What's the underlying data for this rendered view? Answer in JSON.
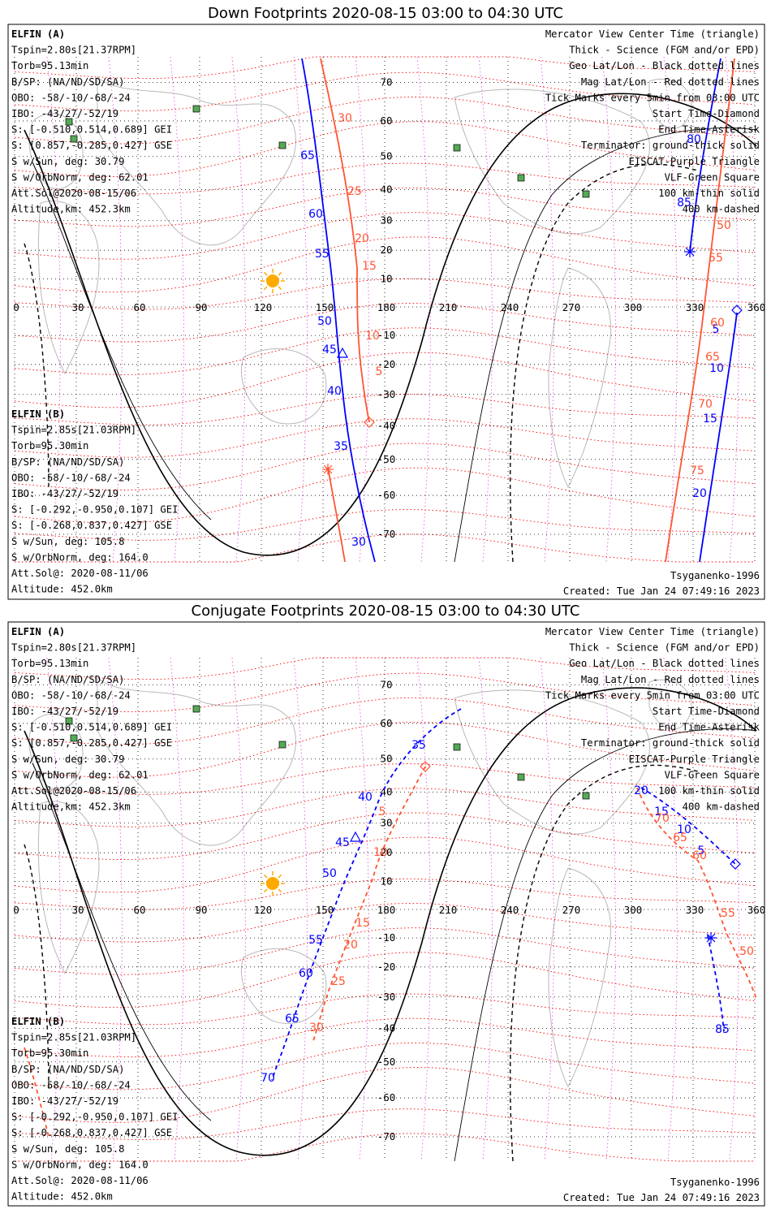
{
  "colors": {
    "probe_a": "#0000ff",
    "probe_b": "#ff5533",
    "geo_grid": "#000000",
    "mag_grid": "#ff0000",
    "lat_band": "#cc00cc",
    "vlf": "#339933",
    "sun": "#ffaa00",
    "coast": "#b8b8b8"
  },
  "panels": [
    {
      "title": "Down Footprints 2020-08-15 03:00 to 04:30 UTC",
      "elfin_a": [
        "ELFIN (A)",
        "Tspin=2.80s[21.37RPM]",
        "Torb=95.13min",
        "B/SP: (NA/ND/SD/SA)",
        "OBO: -58/-10/-68/-24",
        "IBO: -43/27/-52/19",
        "S: [-0.510,0.514,0.689] GEI",
        "S: [0.857,-0.285,0.427] GSE",
        "S w/Sun, deg: 30.79",
        "S w/OrbNorm, deg: 62.01",
        "Att.Sol@2020-08-15/06",
        "Altitude,km: 452.3km"
      ],
      "elfin_b": [
        "ELFIN (B)",
        "Tspin=2.85s[21.03RPM]",
        "Torb=95.30min",
        "B/SP: (NA/ND/SD/SA)",
        "OBO: -58/-10/-68/-24",
        "IBO: -43/27/-52/19",
        "S: [-0.292,-0.950,0.107] GEI",
        "S: [-0.268,0.837,0.427] GSE",
        "S w/Sun, deg: 105.8",
        "S w/OrbNorm, deg: 164.0",
        "Att.Sol@: 2020-08-11/06",
        "Altitude: 452.0km"
      ],
      "legend": [
        "Mercator View Center Time (triangle)",
        "Thick - Science (FGM and/or EPD)",
        "Geo Lat/Lon - Black dotted lines",
        "Mag Lat/Lon - Red dotted lines",
        "Tick Marks every 5min from 03:00 UTC",
        "Start Time-Diamond",
        "End Time-Asterisk",
        "Terminator: ground-thick solid",
        "EISCAT-Purple Triangle",
        "VLF-Green Square",
        "100 km-thin solid",
        "400 km-dashed"
      ],
      "model": "Tsyganenko-1996",
      "created": "Created: Tue Jan 24 07:49:16 2023",
      "lon_labels": [
        "0",
        "30",
        "60",
        "90",
        "120",
        "150",
        "180",
        "210",
        "240",
        "270",
        "300",
        "330",
        "360"
      ],
      "lat_labels": [
        "70",
        "60",
        "50",
        "40",
        "30",
        "20",
        "10",
        "-10",
        "-20",
        "-30",
        "-40",
        "-50",
        "-60",
        "-70"
      ],
      "ticks_a": [
        "30",
        "35",
        "40",
        "45",
        "50",
        "55",
        "60",
        "65",
        "5",
        "10",
        "15",
        "20",
        "80",
        "85"
      ],
      "ticks_b": [
        "30",
        "25",
        "20",
        "15",
        "10",
        "5",
        "50",
        "55",
        "60",
        "65",
        "70",
        "75"
      ]
    },
    {
      "title": "Conjugate Footprints 2020-08-15 03:00 to 04:30 UTC",
      "elfin_a": [
        "ELFIN (A)",
        "Tspin=2.80s[21.37RPM]",
        "Torb=95.13min",
        "B/SP: (NA/ND/SD/SA)",
        "OBO: -58/-10/-68/-24",
        "IBO: -43/27/-52/19",
        "S: [-0.510,0.514,0.689] GEI",
        "S: [0.857,-0.285,0.427] GSE",
        "S w/Sun, deg: 30.79",
        "S w/OrbNorm, deg: 62.01",
        "Att.Sol@2020-08-15/06",
        "Altitude,km: 452.3km"
      ],
      "elfin_b": [
        "ELFIN (B)",
        "Tspin=2.85s[21.03RPM]",
        "Torb=95.30min",
        "B/SP: (NA/ND/SD/SA)",
        "OBO: -58/-10/-68/-24",
        "IBO: -43/27/-52/19",
        "S: [-0.292,-0.950,0.107] GEI",
        "S: [-0.268,0.837,0.427] GSE",
        "S w/Sun, deg: 105.8",
        "S w/OrbNorm, deg: 164.0",
        "Att.Sol@: 2020-08-11/06",
        "Altitude: 452.0km"
      ],
      "legend": [
        "Mercator View Center Time (triangle)",
        "Thick - Science (FGM and/or EPD)",
        "Geo Lat/Lon - Black dotted lines",
        "Mag Lat/Lon - Red dotted lines",
        "Tick Marks every 5min from 03:00 UTC",
        "Start Time-Diamond",
        "End Time-Asterisk",
        "Terminator: ground-thick solid",
        "EISCAT-Purple Triangle",
        "VLF-Green Square",
        "100 km-thin solid",
        "400 km-dashed"
      ],
      "model": "Tsyganenko-1996",
      "created": "Created: Tue Jan 24 07:49:16 2023",
      "lon_labels": [
        "0",
        "30",
        "60",
        "90",
        "120",
        "150",
        "180",
        "210",
        "240",
        "270",
        "300",
        "330",
        "360"
      ],
      "lat_labels": [
        "70",
        "60",
        "50",
        "40",
        "30",
        "20",
        "10",
        "-10",
        "-20",
        "-30",
        "-40",
        "-50",
        "-60",
        "-70"
      ],
      "ticks_a": [
        "35",
        "40",
        "45",
        "50",
        "55",
        "60",
        "65",
        "70",
        "20",
        "15",
        "10",
        "5",
        "85"
      ],
      "ticks_b": [
        "5",
        "10",
        "15",
        "20",
        "25",
        "30",
        "70",
        "65",
        "60",
        "55",
        "50"
      ]
    }
  ],
  "chart_data": [
    {
      "type": "scatter",
      "title": "Down Footprints 2020-08-15 03:00 to 04:30 UTC",
      "xlim": [
        0,
        360
      ],
      "ylim": [
        -80,
        80
      ],
      "grid": true,
      "x_ticks": [
        0,
        30,
        60,
        90,
        120,
        150,
        180,
        210,
        240,
        270,
        300,
        330,
        360
      ],
      "y_ticks": [
        70,
        60,
        50,
        40,
        30,
        20,
        10,
        -10,
        -20,
        -30,
        -40,
        -50,
        -60,
        -70
      ],
      "series": [
        {
          "name": "ELFIN (A)",
          "points": [
            [
              137,
              80
            ],
            [
              139,
              71
            ],
            [
              145,
              58
            ],
            [
              148,
              49
            ],
            [
              150,
              40
            ],
            [
              153,
              31
            ],
            [
              155,
              20
            ],
            [
              156,
              10
            ],
            [
              156,
              0
            ],
            [
              157,
              -10
            ],
            [
              159,
              -20
            ],
            [
              162,
              -30
            ],
            [
              164,
              -40
            ],
            [
              167,
              -50
            ],
            [
              170,
              -60
            ],
            [
              173,
              -70
            ],
            [
              177,
              -79
            ]
          ]
        },
        {
          "name": "ELFIN (A)",
          "points": [
            [
              322,
              70
            ],
            [
              326,
              60
            ],
            [
              329,
              50
            ],
            [
              332,
              38
            ],
            [
              333,
              28
            ],
            [
              347,
              -40
            ],
            [
              349,
              -50
            ],
            [
              351,
              -60
            ],
            [
              354,
              -74
            ]
          ]
        },
        {
          "name": "ELFIN (B)",
          "points": [
            [
              146,
              80
            ],
            [
              156,
              70
            ],
            [
              161,
              60
            ],
            [
              163,
              50
            ],
            [
              165,
              40
            ],
            [
              166,
              30
            ],
            [
              167,
              20
            ],
            [
              167,
              10
            ],
            [
              166,
              0
            ],
            [
              166,
              -10
            ],
            [
              166,
              -20
            ],
            [
              168,
              -30
            ],
            [
              170,
              -40
            ],
            [
              172,
              -48
            ]
          ]
        },
        {
          "name": "ELFIN (B)",
          "points": [
            [
              153,
              -62
            ],
            [
              158,
              -70
            ],
            [
              162,
              -80
            ]
          ]
        },
        {
          "name": "ELFIN (B)",
          "points": [
            [
              356,
              80
            ],
            [
              352,
              60
            ],
            [
              345,
              40
            ],
            [
              340,
              20
            ],
            [
              334,
              0
            ],
            [
              330,
              -20
            ],
            [
              326,
              -40
            ],
            [
              322,
              -60
            ],
            [
              318,
              -80
            ]
          ]
        }
      ]
    },
    {
      "type": "scatter",
      "title": "Conjugate Footprints 2020-08-15 03:00 to 04:30 UTC",
      "xlim": [
        0,
        360
      ],
      "ylim": [
        -80,
        80
      ],
      "grid": true,
      "x_ticks": [
        0,
        30,
        60,
        90,
        120,
        150,
        180,
        210,
        240,
        270,
        300,
        330,
        360
      ],
      "y_ticks": [
        70,
        60,
        50,
        40,
        30,
        20,
        10,
        -10,
        -20,
        -30,
        -40,
        -50,
        -60,
        -70
      ],
      "series": [
        {
          "name": "ELFIN (A)",
          "points": [
            [
              213,
              72
            ],
            [
              190,
              60
            ],
            [
              178,
              50
            ],
            [
              170,
              40
            ],
            [
              165,
              32
            ],
            [
              159,
              20
            ],
            [
              154,
              10
            ],
            [
              150,
              0
            ],
            [
              147,
              -10
            ],
            [
              143,
              -20
            ],
            [
              138,
              -30
            ],
            [
              134,
              -40
            ],
            [
              128,
              -50
            ],
            [
              122,
              -62
            ],
            [
              118,
              -70
            ]
          ]
        },
        {
          "name": "ELFIN (A)",
          "points": [
            [
              302,
              50
            ],
            [
              315,
              42
            ],
            [
              325,
              38
            ],
            [
              337,
              33
            ],
            [
              348,
              27
            ]
          ]
        },
        {
          "name": "ELFIN (A)",
          "points": [
            [
              333,
              -10
            ],
            [
              340,
              -20
            ],
            [
              345,
              -30
            ],
            [
              348,
              -40
            ],
            [
              350,
              -50
            ]
          ]
        },
        {
          "name": "ELFIN (B)",
          "points": [
            [
              196,
              60
            ],
            [
              189,
              50
            ],
            [
              180,
              40
            ],
            [
              172,
              30
            ],
            [
              166,
              20
            ],
            [
              162,
              10
            ],
            [
              160,
              0
            ],
            [
              158,
              -10
            ],
            [
              155,
              -20
            ],
            [
              150,
              -30
            ],
            [
              145,
              -40
            ],
            [
              140,
              -50
            ],
            [
              138,
              -58
            ]
          ]
        },
        {
          "name": "ELFIN (B)",
          "points": [
            [
              296,
              48
            ],
            [
              304,
              42
            ],
            [
              312,
              36
            ],
            [
              320,
              30
            ],
            [
              330,
              22
            ],
            [
              334,
              10
            ],
            [
              337,
              0
            ],
            [
              340,
              -12
            ],
            [
              344,
              -24
            ],
            [
              352,
              -40
            ]
          ]
        },
        {
          "name": "ELFIN (B)",
          "points": [
            [
              3,
              -50
            ],
            [
              6,
              -58
            ],
            [
              10,
              -66
            ],
            [
              14,
              -74
            ]
          ]
        }
      ]
    }
  ]
}
